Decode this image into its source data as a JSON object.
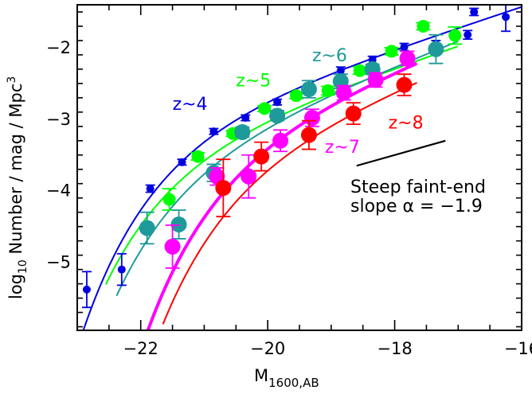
{
  "chart_data": {
    "type": "scatter",
    "xlabel": "M",
    "xlabel_sub": "1600,AB",
    "ylabel_prefix": "log",
    "ylabel_sub": "10",
    "ylabel_rest": " Number / mag / Mpc",
    "ylabel_sup": "3",
    "xlim": [
      -23.0,
      -16.0
    ],
    "ylim": [
      -5.95,
      -1.4
    ],
    "xticks": [
      -22,
      -20,
      -18,
      -16
    ],
    "xtick_labels": [
      "−22",
      "−20",
      "−18",
      "−16"
    ],
    "yticks": [
      -5,
      -4,
      -3,
      -2
    ],
    "ytick_labels": [
      "−5",
      "−4",
      "−3",
      "−2"
    ],
    "annotation_line1": "Steep faint-end",
    "annotation_line2": "slope α = −1.9",
    "series": [
      {
        "name": "z~4",
        "color": "#0000e0",
        "marker_size": 5,
        "label_pos": [
          -21.5,
          -2.87
        ],
        "curve": {
          "phistar": -2.85,
          "mstar": -21.0,
          "alpha": -1.73,
          "xmin": -23.0,
          "xmax": -16.0,
          "width": 2
        },
        "points": [
          [
            -22.85,
            -5.38,
            0.25
          ],
          [
            -22.3,
            -5.1,
            0.22
          ],
          [
            -21.85,
            -3.97,
            0.05
          ],
          [
            -21.35,
            -3.6,
            0.04
          ],
          [
            -20.85,
            -3.17,
            0.04
          ],
          [
            -20.35,
            -2.98,
            0.04
          ],
          [
            -19.85,
            -2.76,
            0.04
          ],
          [
            -19.35,
            -2.55,
            0.04
          ],
          [
            -18.85,
            -2.32,
            0.05
          ],
          [
            -18.35,
            -2.17,
            0.05
          ],
          [
            -17.85,
            -1.99,
            0.05
          ],
          [
            -17.35,
            -1.95,
            0.05
          ],
          [
            -16.85,
            -1.82,
            0.06
          ],
          [
            -16.75,
            -1.5,
            0.05
          ],
          [
            -16.25,
            -1.57,
            0.2
          ]
        ]
      },
      {
        "name": "z~5",
        "color": "#00ff00",
        "marker_size": 8,
        "label_pos": [
          -20.5,
          -2.54
        ],
        "curve": {
          "phistar": -3.18,
          "mstar": -21.1,
          "alpha": -1.76,
          "xmin": -22.55,
          "xmax": -17.0,
          "width": 2
        },
        "points": [
          [
            -21.55,
            -4.12,
            0.15
          ],
          [
            -21.1,
            -3.52,
            0.05
          ],
          [
            -20.55,
            -3.2,
            0.04
          ],
          [
            -20.05,
            -2.85,
            0.04
          ],
          [
            -19.55,
            -2.67,
            0.04
          ],
          [
            -19.05,
            -2.6,
            0.06
          ],
          [
            -18.55,
            -2.32,
            0.05
          ],
          [
            -18.05,
            -2.05,
            0.05
          ],
          [
            -17.55,
            -1.7,
            0.05
          ],
          [
            -17.05,
            -1.83,
            0.12
          ]
        ]
      },
      {
        "name": "z~6",
        "color": "#1f9a9a",
        "marker_size": 10,
        "label_pos": [
          -19.3,
          -2.19
        ],
        "curve": {
          "phistar": -3.22,
          "mstar": -20.9,
          "alpha": -1.87,
          "xmin": -22.38,
          "xmax": -17.0,
          "width": 2
        },
        "points": [
          [
            -21.9,
            -4.52,
            0.22
          ],
          [
            -21.4,
            -4.47,
            0.2
          ],
          [
            -20.85,
            -3.75,
            0.12
          ],
          [
            -20.4,
            -3.18,
            0.07
          ],
          [
            -19.85,
            -2.95,
            0.07
          ],
          [
            -19.35,
            -2.58,
            0.12
          ],
          [
            -18.85,
            -2.47,
            0.1
          ],
          [
            -18.35,
            -2.3,
            0.07
          ],
          [
            -17.35,
            -2.02,
            0.2
          ]
        ]
      },
      {
        "name": "z~7",
        "color": "#ff00ff",
        "marker_size": 10,
        "label_pos": [
          -19.1,
          -3.47
        ],
        "curve": {
          "phistar": -3.02,
          "mstar": -20.1,
          "alpha": -1.9,
          "xmin": -21.95,
          "xmax": -17.65,
          "width": 4
        },
        "points": [
          [
            -21.5,
            -4.78,
            0.3
          ],
          [
            -20.8,
            -3.8,
            0.12
          ],
          [
            -20.3,
            -3.8,
            0.3
          ],
          [
            -19.8,
            -3.3,
            0.15
          ],
          [
            -19.3,
            -2.98,
            0.12
          ],
          [
            -18.8,
            -2.63,
            0.1
          ],
          [
            -18.3,
            -2.45,
            0.1
          ],
          [
            -17.8,
            -2.15,
            0.1
          ]
        ]
      },
      {
        "name": "z~8",
        "color": "#ff0000",
        "marker_size": 10,
        "label_pos": [
          -18.1,
          -3.13
        ],
        "curve": {
          "phistar": -3.25,
          "mstar": -20.0,
          "alpha": -1.9,
          "xmin": -21.65,
          "xmax": -17.65,
          "width": 2
        },
        "points": [
          [
            -20.7,
            -3.96,
            0.4
          ],
          [
            -20.1,
            -3.52,
            0.2
          ],
          [
            -19.35,
            -3.22,
            0.2
          ],
          [
            -18.65,
            -2.92,
            0.15
          ],
          [
            -17.85,
            -2.52,
            0.15
          ]
        ]
      }
    ],
    "slope_line": {
      "x1": -18.6,
      "y1": -3.65,
      "x2": -17.2,
      "y2": -3.3
    }
  }
}
